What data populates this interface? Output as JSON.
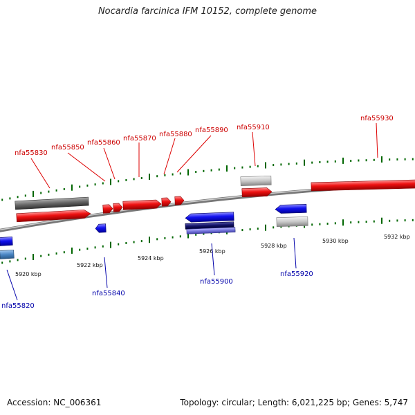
{
  "title": "Nocardia farcinica IFM 10152, complete genome",
  "footer": {
    "accession": "Accession: NC_006361",
    "summary": "Topology: circular; Length: 6,021,225 bp; Genes: 5,747"
  },
  "colors": {
    "forward_label": "#cc0000",
    "reverse_label": "#0000aa",
    "tick": "#006600",
    "backbone": "#888888"
  },
  "kbp_labels": [
    "5920 kbp",
    "5922 kbp",
    "5924 kbp",
    "5926 kbp",
    "5928 kbp",
    "5930 kbp",
    "5932 kbp"
  ],
  "genes": {
    "top": [
      "nfa55830",
      "nfa55850",
      "nfa55860",
      "nfa55870",
      "nfa55880",
      "nfa55890",
      "nfa55910",
      "nfa55930"
    ],
    "bottom": [
      "nfa55820",
      "nfa55840",
      "nfa55900",
      "nfa55920"
    ]
  }
}
